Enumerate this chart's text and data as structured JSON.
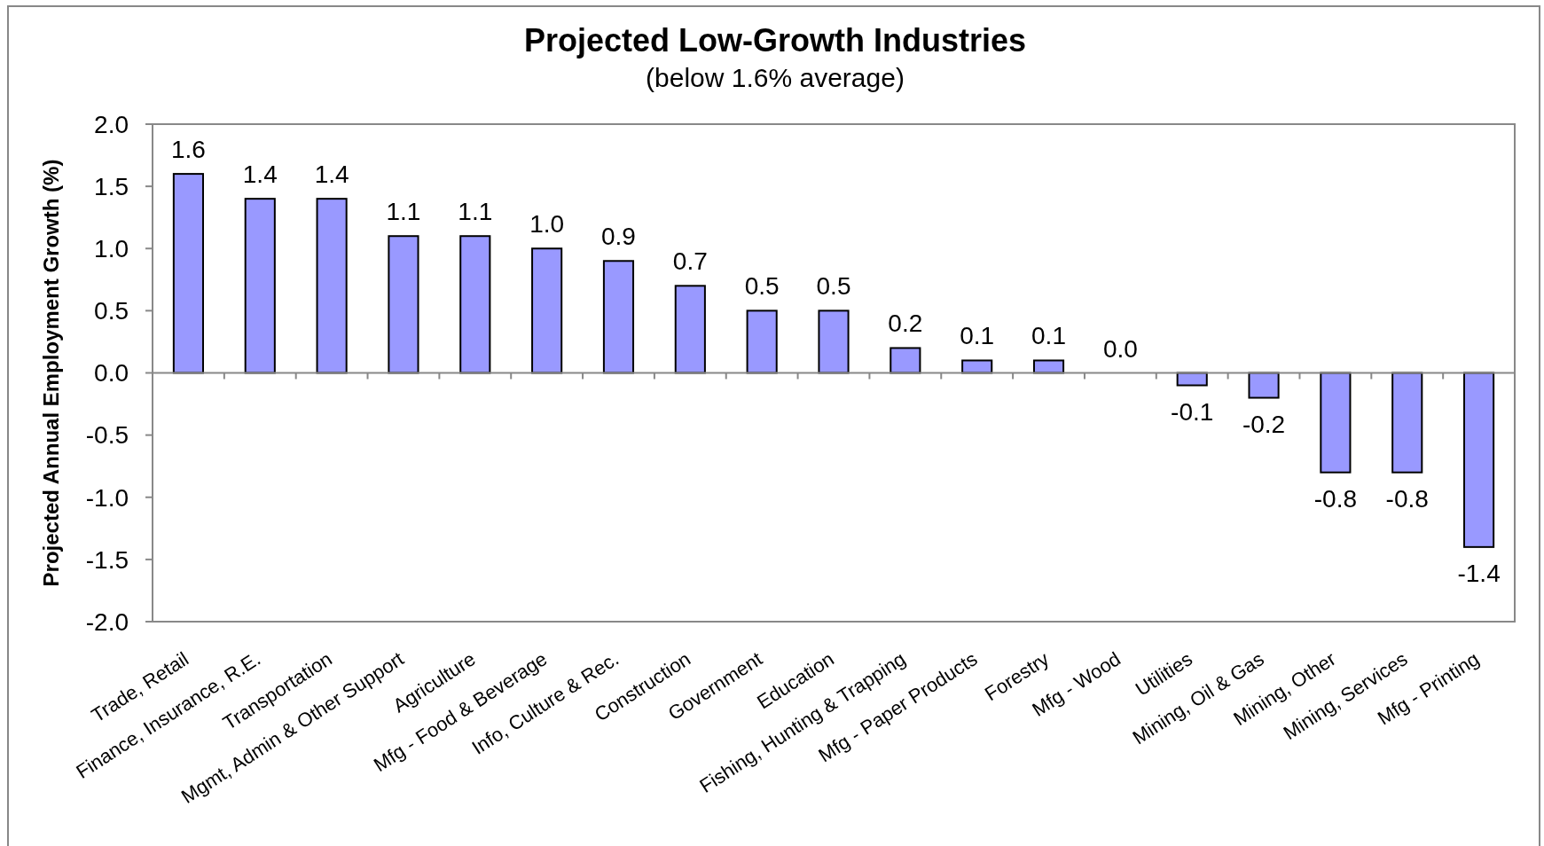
{
  "chart_data": {
    "type": "bar",
    "title": "Projected Low-Growth Industries",
    "subtitle": "(below 1.6% average)",
    "ylabel": "Projected Annual Employment Growth (%)",
    "categories": [
      "Trade, Retail",
      "Finance, Insurance, R.E.",
      "Transportation",
      "Mgmt, Admin & Other Support",
      "Agriculture",
      "Mfg - Food & Beverage",
      "Info, Culture & Rec.",
      "Construction",
      "Government",
      "Education",
      "Fishing, Hunting & Trapping",
      "Mfg - Paper Products",
      "Forestry",
      "Mfg - Wood",
      "Utilities",
      "Mining, Oil & Gas",
      "Mining, Other",
      "Mining, Services",
      "Mfg - Printing"
    ],
    "values": [
      1.6,
      1.4,
      1.4,
      1.1,
      1.1,
      1.0,
      0.9,
      0.7,
      0.5,
      0.5,
      0.2,
      0.1,
      0.1,
      0.0,
      -0.1,
      -0.2,
      -0.8,
      -0.8,
      -1.4
    ],
    "value_labels": [
      "1.6",
      "1.4",
      "1.4",
      "1.1",
      "1.1",
      "1.0",
      "0.9",
      "0.7",
      "0.5",
      "0.5",
      "0.2",
      "0.1",
      "0.1",
      "0.0",
      "-0.1",
      "-0.2",
      "-0.8",
      "-0.8",
      "-1.4"
    ],
    "color": "#9999ff",
    "ylim": [
      -2,
      2
    ],
    "yticks": [
      {
        "value": -2,
        "label": "-2.0"
      },
      {
        "value": -1.5,
        "label": "-1.5"
      },
      {
        "value": -1,
        "label": "-1.0"
      },
      {
        "value": -0.5,
        "label": "-0.5"
      },
      {
        "value": 0,
        "label": "0.0"
      },
      {
        "value": 0.5,
        "label": "0.5"
      },
      {
        "value": 1,
        "label": "1.0"
      },
      {
        "value": 1.5,
        "label": "1.5"
      },
      {
        "value": 2,
        "label": "2.0"
      }
    ]
  }
}
